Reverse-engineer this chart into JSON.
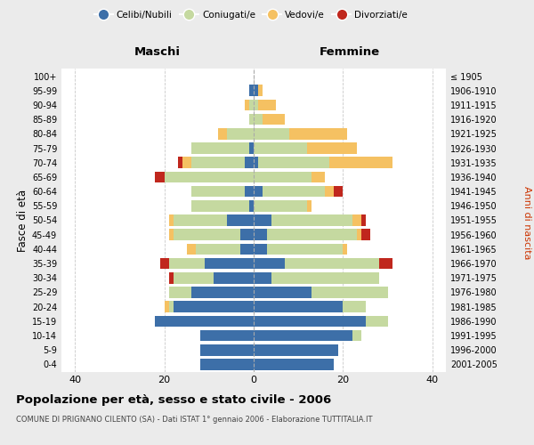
{
  "age_groups": [
    "0-4",
    "5-9",
    "10-14",
    "15-19",
    "20-24",
    "25-29",
    "30-34",
    "35-39",
    "40-44",
    "45-49",
    "50-54",
    "55-59",
    "60-64",
    "65-69",
    "70-74",
    "75-79",
    "80-84",
    "85-89",
    "90-94",
    "95-99",
    "100+"
  ],
  "birth_years": [
    "2001-2005",
    "1996-2000",
    "1991-1995",
    "1986-1990",
    "1981-1985",
    "1976-1980",
    "1971-1975",
    "1966-1970",
    "1961-1965",
    "1956-1960",
    "1951-1955",
    "1946-1950",
    "1941-1945",
    "1936-1940",
    "1931-1935",
    "1926-1930",
    "1921-1925",
    "1916-1920",
    "1911-1915",
    "1906-1910",
    "≤ 1905"
  ],
  "maschi": {
    "celibi": [
      12,
      12,
      12,
      22,
      18,
      14,
      9,
      11,
      3,
      3,
      6,
      1,
      2,
      0,
      2,
      1,
      0,
      0,
      0,
      1,
      0
    ],
    "coniugati": [
      0,
      0,
      0,
      0,
      1,
      5,
      9,
      8,
      10,
      15,
      12,
      13,
      12,
      20,
      12,
      13,
      6,
      1,
      1,
      0,
      0
    ],
    "vedovi": [
      0,
      0,
      0,
      0,
      1,
      0,
      0,
      0,
      2,
      1,
      1,
      0,
      0,
      0,
      2,
      0,
      2,
      0,
      1,
      0,
      0
    ],
    "divorziati": [
      0,
      0,
      0,
      0,
      0,
      0,
      1,
      2,
      0,
      0,
      0,
      0,
      0,
      2,
      1,
      0,
      0,
      0,
      0,
      0,
      0
    ]
  },
  "femmine": {
    "nubili": [
      18,
      19,
      22,
      25,
      20,
      13,
      4,
      7,
      3,
      3,
      4,
      0,
      2,
      0,
      1,
      0,
      0,
      0,
      0,
      1,
      0
    ],
    "coniugate": [
      0,
      0,
      2,
      5,
      5,
      17,
      24,
      21,
      17,
      20,
      18,
      12,
      14,
      13,
      16,
      12,
      8,
      2,
      1,
      0,
      0
    ],
    "vedove": [
      0,
      0,
      0,
      0,
      0,
      0,
      0,
      0,
      1,
      1,
      2,
      1,
      2,
      3,
      14,
      11,
      13,
      5,
      4,
      1,
      0
    ],
    "divorziate": [
      0,
      0,
      0,
      0,
      0,
      0,
      0,
      3,
      0,
      2,
      1,
      0,
      2,
      0,
      0,
      0,
      0,
      0,
      0,
      0,
      0
    ]
  },
  "colors": {
    "celibi": "#3d6fa8",
    "coniugati": "#c5d9a0",
    "vedovi": "#f5c162",
    "divorziati": "#c0271d"
  },
  "legend_labels": [
    "Celibi/Nubili",
    "Coniugati/e",
    "Vedovi/e",
    "Divorziati/e"
  ],
  "xlim": 43,
  "title": "Popolazione per età, sesso e stato civile - 2006",
  "subtitle": "COMUNE DI PRIGNANO CILENTO (SA) - Dati ISTAT 1° gennaio 2006 - Elaborazione TUTTITALIA.IT",
  "ylabel_left": "Fasce di età",
  "ylabel_right": "Anni di nascita",
  "xlabel_maschi": "Maschi",
  "xlabel_femmine": "Femmine",
  "bg_color": "#ebebeb",
  "plot_bg": "#ffffff"
}
